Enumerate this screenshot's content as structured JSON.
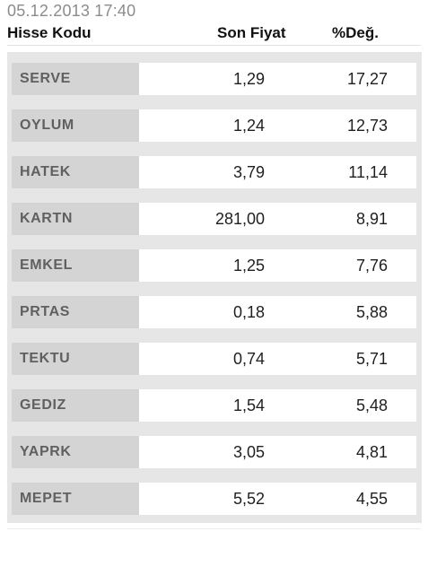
{
  "timestamp": "05.12.2013 17:40",
  "headers": {
    "code": "Hisse Kodu",
    "price": "Son Fiyat",
    "change": "%Değ."
  },
  "rows": [
    {
      "code": "SERVE",
      "price": "1,29",
      "change": "17,27"
    },
    {
      "code": "OYLUM",
      "price": "1,24",
      "change": "12,73"
    },
    {
      "code": "HATEK",
      "price": "3,79",
      "change": "11,14"
    },
    {
      "code": "KARTN",
      "price": "281,00",
      "change": "8,91"
    },
    {
      "code": "EMKEL",
      "price": "1,25",
      "change": "7,76"
    },
    {
      "code": "PRTAS",
      "price": "0,18",
      "change": "5,88"
    },
    {
      "code": "TEKTU",
      "price": "0,74",
      "change": "5,71"
    },
    {
      "code": "GEDIZ",
      "price": "1,54",
      "change": "5,48"
    },
    {
      "code": "YAPRK",
      "price": "3,05",
      "change": "4,81"
    },
    {
      "code": "MEPET",
      "price": "5,52",
      "change": "4,55"
    }
  ],
  "colors": {
    "timestamp": "#8c8c8c",
    "code_cell_bg": "#d4d4d4",
    "code_text": "#606060",
    "table_bg": "#e6e6e6"
  }
}
